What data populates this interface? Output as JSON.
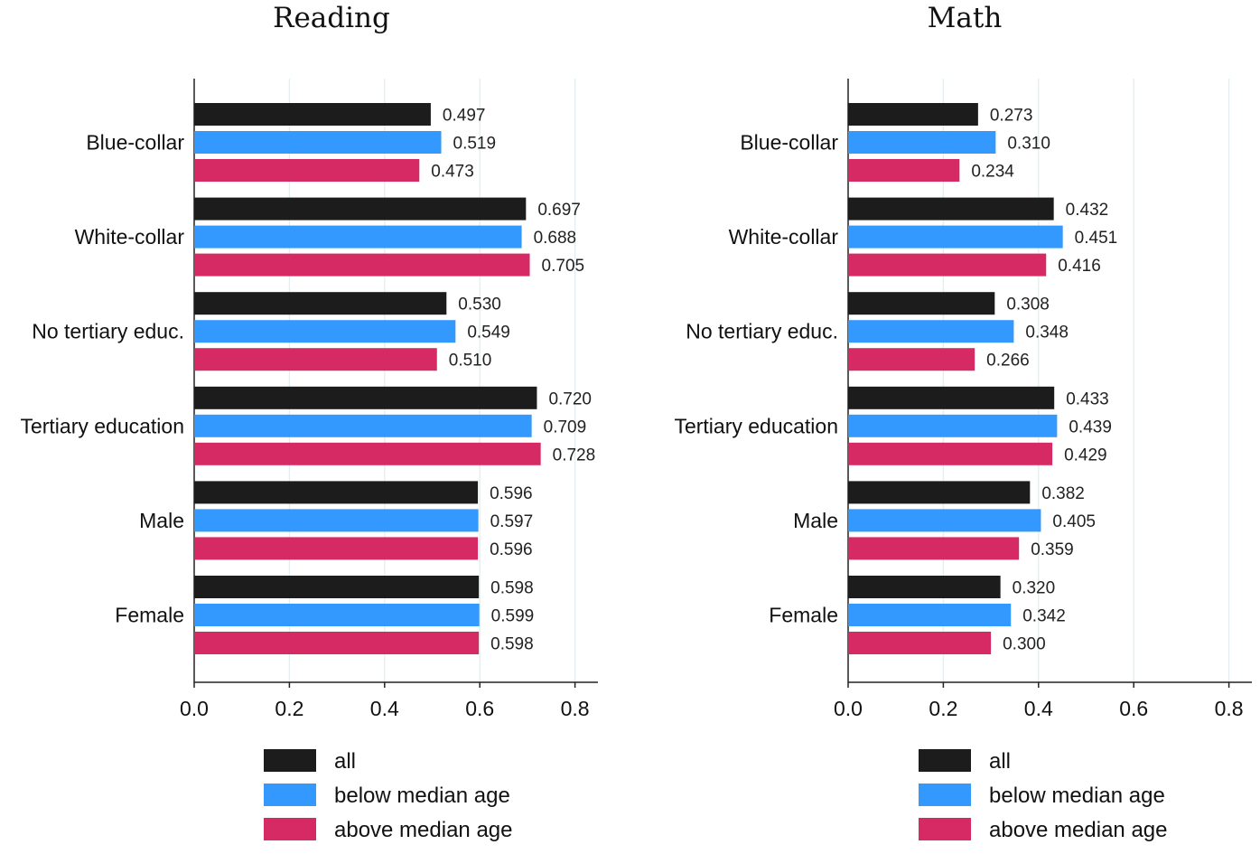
{
  "chart_data": [
    {
      "type": "bar",
      "orientation": "horizontal",
      "title": "Reading",
      "categories": [
        "Blue-collar",
        "White-collar",
        "No tertiary educ.",
        "Tertiary education",
        "Male",
        "Female"
      ],
      "series": [
        {
          "name": "all",
          "color": "#1c1c1c",
          "values": [
            0.497,
            0.697,
            0.53,
            0.72,
            0.596,
            0.598
          ]
        },
        {
          "name": "below median age",
          "color": "#3399ff",
          "values": [
            0.519,
            0.688,
            0.549,
            0.709,
            0.597,
            0.599
          ]
        },
        {
          "name": "above median age",
          "color": "#d62a65",
          "values": [
            0.473,
            0.705,
            0.51,
            0.728,
            0.596,
            0.598
          ]
        }
      ],
      "value_labels": [
        [
          "0.497",
          "0.697",
          "0.530",
          "0.720",
          "0.596",
          "0.598"
        ],
        [
          "0.519",
          "0.688",
          "0.549",
          "0.709",
          "0.597",
          "0.599"
        ],
        [
          "0.473",
          "0.705",
          "0.510",
          "0.728",
          "0.596",
          "0.598"
        ]
      ],
      "xlim": [
        0,
        0.85
      ],
      "xticks": [
        "0.0",
        "0.2",
        "0.4",
        "0.6",
        "0.8"
      ],
      "grid": true,
      "legend_position": "bottom"
    },
    {
      "type": "bar",
      "orientation": "horizontal",
      "title": "Math",
      "categories": [
        "Blue-collar",
        "White-collar",
        "No tertiary educ.",
        "Tertiary education",
        "Male",
        "Female"
      ],
      "series": [
        {
          "name": "all",
          "color": "#1c1c1c",
          "values": [
            0.273,
            0.432,
            0.308,
            0.433,
            0.382,
            0.32
          ]
        },
        {
          "name": "below median age",
          "color": "#3399ff",
          "values": [
            0.31,
            0.451,
            0.348,
            0.439,
            0.405,
            0.342
          ]
        },
        {
          "name": "above median age",
          "color": "#d62a65",
          "values": [
            0.234,
            0.416,
            0.266,
            0.429,
            0.359,
            0.3
          ]
        }
      ],
      "value_labels": [
        [
          "0.273",
          "0.432",
          "0.308",
          "0.433",
          "0.382",
          "0.320"
        ],
        [
          "0.310",
          "0.451",
          "0.348",
          "0.439",
          "0.405",
          "0.342"
        ],
        [
          "0.234",
          "0.416",
          "0.266",
          "0.429",
          "0.359",
          "0.300"
        ]
      ],
      "xlim": [
        0,
        0.85
      ],
      "xticks": [
        "0.0",
        "0.2",
        "0.4",
        "0.6",
        "0.8"
      ],
      "grid": true,
      "legend_position": "bottom"
    }
  ]
}
